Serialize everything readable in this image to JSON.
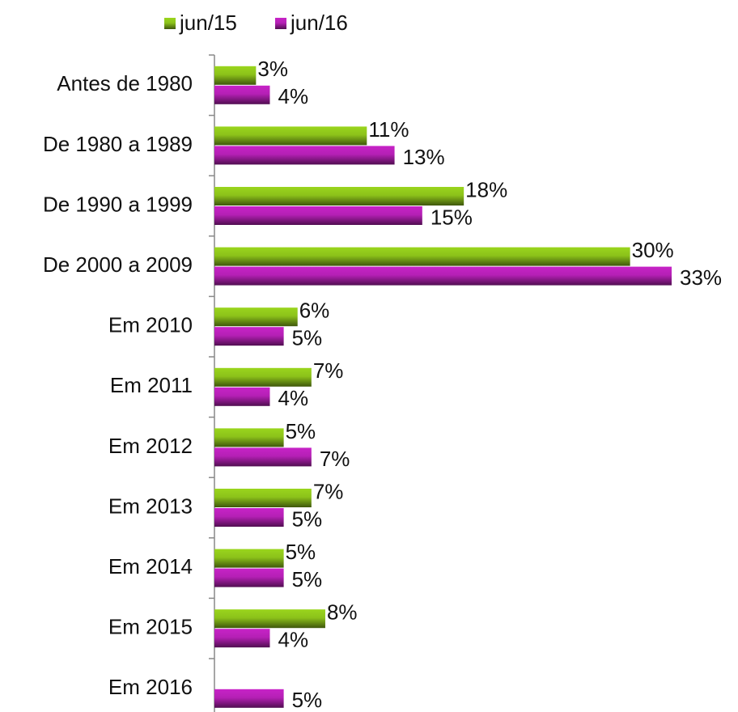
{
  "chart_data": {
    "type": "bar",
    "orientation": "horizontal",
    "categories": [
      "Antes de 1980",
      "De 1980 a 1989",
      "De 1990 a 1999",
      "De 2000 a 2009",
      "Em 2010",
      "Em 2011",
      "Em 2012",
      "Em 2013",
      "Em 2014",
      "Em 2015",
      "Em 2016"
    ],
    "series": [
      {
        "name": "jun/15",
        "color": "#8cc21a",
        "values": [
          3,
          11,
          18,
          30,
          6,
          7,
          5,
          7,
          5,
          8,
          null
        ],
        "value_labels": [
          "3%",
          "11%",
          "18%",
          "30%",
          "6%",
          "7%",
          "5%",
          "7%",
          "5%",
          "8%",
          null
        ]
      },
      {
        "name": "jun/16",
        "color": "#b520b5",
        "values": [
          4,
          13,
          15,
          33,
          5,
          4,
          7,
          5,
          5,
          4,
          5
        ],
        "value_labels": [
          "4%",
          "13%",
          "15%",
          "33%",
          "5%",
          "4%",
          "7%",
          "5%",
          "5%",
          "4%",
          "5%"
        ]
      }
    ],
    "legend": "top"
  }
}
